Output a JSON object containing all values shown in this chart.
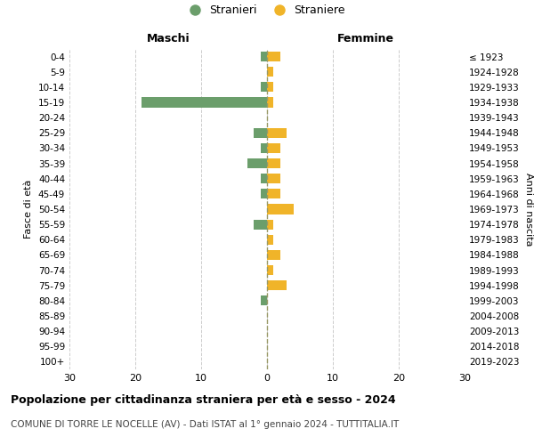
{
  "age_groups": [
    "100+",
    "95-99",
    "90-94",
    "85-89",
    "80-84",
    "75-79",
    "70-74",
    "65-69",
    "60-64",
    "55-59",
    "50-54",
    "45-49",
    "40-44",
    "35-39",
    "30-34",
    "25-29",
    "20-24",
    "15-19",
    "10-14",
    "5-9",
    "0-4"
  ],
  "birth_years": [
    "≤ 1923",
    "1924-1928",
    "1929-1933",
    "1934-1938",
    "1939-1943",
    "1944-1948",
    "1949-1953",
    "1954-1958",
    "1959-1963",
    "1964-1968",
    "1969-1973",
    "1974-1978",
    "1979-1983",
    "1984-1988",
    "1989-1993",
    "1994-1998",
    "1999-2003",
    "2004-2008",
    "2009-2013",
    "2014-2018",
    "2019-2023"
  ],
  "maschi": [
    0,
    0,
    0,
    0,
    1,
    0,
    0,
    0,
    0,
    2,
    0,
    1,
    1,
    3,
    1,
    2,
    0,
    19,
    1,
    0,
    1
  ],
  "femmine": [
    0,
    0,
    0,
    0,
    0,
    3,
    1,
    2,
    1,
    1,
    4,
    2,
    2,
    2,
    2,
    3,
    0,
    1,
    1,
    1,
    2
  ],
  "color_maschi": "#6b9e6b",
  "color_femmine": "#f0b429",
  "title": "Popolazione per cittadinanza straniera per età e sesso - 2024",
  "subtitle": "COMUNE DI TORRE LE NOCELLE (AV) - Dati ISTAT al 1° gennaio 2024 - TUTTITALIA.IT",
  "xlabel_left": "Maschi",
  "xlabel_right": "Femmine",
  "ylabel_left": "Fasce di età",
  "ylabel_right": "Anni di nascita",
  "legend_stranieri": "Stranieri",
  "legend_straniere": "Straniere",
  "xlim": 30,
  "background_color": "#ffffff",
  "grid_color": "#cccccc",
  "dashed_line_color": "#999966"
}
